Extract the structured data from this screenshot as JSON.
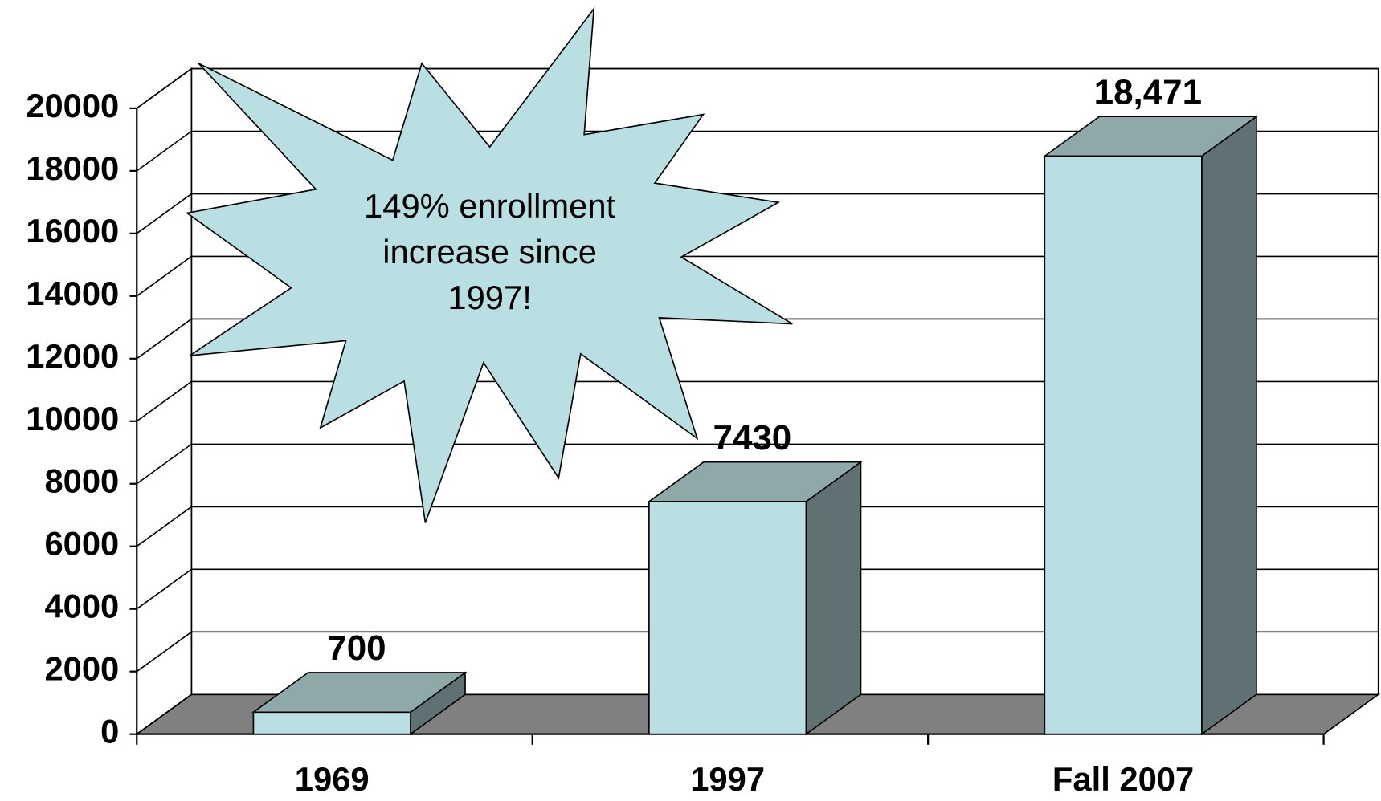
{
  "chart_data": {
    "type": "bar3d",
    "categories": [
      "1969",
      "1997",
      "Fall 2007"
    ],
    "values": [
      700,
      7430,
      18471
    ],
    "value_labels": [
      "700",
      "7430",
      "18,471"
    ],
    "color": "#b9dfe3",
    "ylim": [
      0,
      20000
    ],
    "yticks": [
      0,
      2000,
      4000,
      6000,
      8000,
      10000,
      12000,
      14000,
      16000,
      18000,
      20000
    ],
    "grid": true,
    "annotation": [
      "149% enrollment",
      "increase since",
      "1997!"
    ]
  }
}
